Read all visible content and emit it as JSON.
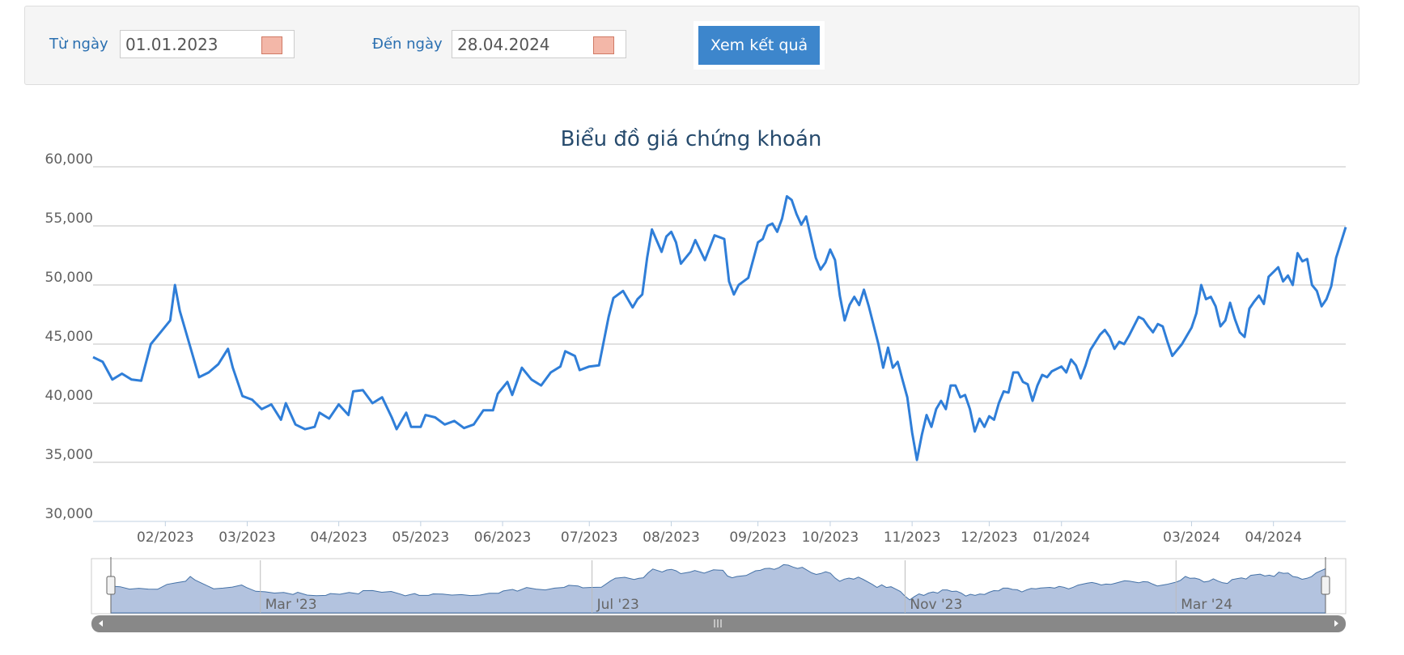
{
  "form": {
    "from_label": "Từ ngày",
    "from_value": "01.01.2023",
    "to_label": "Đến ngày",
    "to_value": "28.04.2024",
    "button": "Xem kết quả"
  },
  "chart_data": {
    "type": "line",
    "title": "Biểu đồ giá chứng khoán",
    "color": "#2f7ed8",
    "x": [
      0,
      2,
      4,
      6,
      8,
      10,
      12,
      14,
      16,
      17,
      18,
      20,
      22,
      24,
      26,
      28,
      29,
      31,
      33,
      35,
      37,
      39,
      40,
      42,
      44,
      46,
      47,
      49,
      51,
      53,
      54,
      56,
      58,
      60,
      62,
      63,
      65,
      66,
      68,
      69,
      71,
      73,
      75,
      77,
      79,
      81,
      83,
      84,
      86,
      87,
      89,
      91,
      93,
      95,
      97,
      98,
      100,
      101,
      103,
      105,
      107,
      108,
      110,
      112,
      113,
      114,
      115,
      116,
      118,
      119,
      120,
      121,
      122,
      124,
      125,
      127,
      129,
      131,
      132,
      133,
      134,
      136,
      138,
      139,
      140,
      141,
      142,
      143,
      144,
      145,
      146,
      147,
      148,
      150,
      151,
      152,
      153,
      154,
      155,
      156,
      157,
      158,
      159,
      160,
      161,
      163,
      164,
      165,
      166,
      167,
      168,
      169,
      170,
      171,
      172,
      173,
      174,
      175,
      176,
      177,
      178,
      179,
      180,
      181,
      182,
      183,
      184,
      185,
      186,
      187,
      188,
      189,
      190,
      191,
      192,
      193,
      194,
      195,
      196,
      197,
      198,
      199,
      201,
      202,
      203,
      204,
      205,
      206,
      207,
      209,
      210,
      211,
      212,
      213,
      214,
      215,
      217,
      218,
      219,
      220,
      221,
      222,
      223,
      224,
      226,
      228,
      229,
      230,
      231,
      232,
      233,
      234,
      235,
      236,
      237,
      238,
      239,
      240,
      241,
      242,
      243,
      244,
      245,
      246,
      247,
      248,
      249,
      250,
      251,
      252,
      253,
      254,
      255,
      256,
      257,
      258,
      260
    ],
    "values": [
      43900,
      43500,
      42000,
      42500,
      42000,
      41900,
      45000,
      46000,
      47000,
      50000,
      47800,
      45000,
      42200,
      42600,
      43300,
      44600,
      43000,
      40600,
      40300,
      39500,
      39900,
      38600,
      40000,
      38200,
      37800,
      38000,
      39200,
      38700,
      39900,
      39000,
      41000,
      41100,
      40000,
      40500,
      38800,
      37800,
      39200,
      38000,
      38000,
      39000,
      38800,
      38200,
      38500,
      37900,
      38200,
      39400,
      39400,
      40800,
      41800,
      40700,
      43000,
      42000,
      41500,
      42600,
      43100,
      44400,
      44000,
      42800,
      43100,
      43200,
      47300,
      48900,
      49500,
      48100,
      48800,
      49200,
      52300,
      54700,
      52800,
      54100,
      54500,
      53600,
      51800,
      52800,
      53800,
      52100,
      54200,
      53900,
      50300,
      49200,
      50000,
      50600,
      53600,
      53900,
      55000,
      55200,
      54500,
      55600,
      57500,
      57200,
      56000,
      55100,
      55800,
      52300,
      51300,
      51900,
      53000,
      52100,
      49100,
      47000,
      48300,
      49000,
      48300,
      49600,
      48200,
      45000,
      43000,
      44700,
      43000,
      43500,
      42000,
      40500,
      37500,
      35200,
      37300,
      39000,
      38000,
      39500,
      40200,
      39500,
      41500,
      41500,
      40500,
      40700,
      39500,
      37600,
      38700,
      38000,
      38900,
      38600,
      40000,
      41000,
      40900,
      42600,
      42600,
      41800,
      41600,
      40200,
      41500,
      42400,
      42200,
      42700,
      43100,
      42600,
      43700,
      43200,
      42100,
      43200,
      44500,
      45800,
      46200,
      45600,
      44600,
      45200,
      45000,
      45700,
      47300,
      47100,
      46500,
      46000,
      46700,
      46500,
      45200,
      44000,
      45000,
      46400,
      47600,
      50000,
      48800,
      49000,
      48200,
      46500,
      47000,
      48500,
      47100,
      46000,
      45600,
      48000,
      48600,
      49100,
      48400,
      50700,
      51100,
      51500,
      50300,
      50800,
      50000,
      52700,
      52000,
      52200,
      50000,
      49500,
      48200,
      48800,
      49900,
      52300,
      54900
    ],
    "xlim": [
      0,
      260
    ],
    "xticks": [
      {
        "value": 15,
        "label": "02/2023"
      },
      {
        "value": 32,
        "label": "03/2023"
      },
      {
        "value": 51,
        "label": "04/2023"
      },
      {
        "value": 68,
        "label": "05/2023"
      },
      {
        "value": 85,
        "label": "06/2023"
      },
      {
        "value": 103,
        "label": "07/2023"
      },
      {
        "value": 120,
        "label": "08/2023"
      },
      {
        "value": 138,
        "label": "09/2023"
      },
      {
        "value": 153,
        "label": "10/2023"
      },
      {
        "value": 170,
        "label": "11/2023"
      },
      {
        "value": 186,
        "label": "12/2023"
      },
      {
        "value": 201,
        "label": "01/2024"
      },
      {
        "value": 228,
        "label": "03/2024"
      },
      {
        "value": 245,
        "label": "04/2024"
      }
    ],
    "ylim": [
      30000,
      60000
    ],
    "yticks": [
      {
        "value": 30000,
        "label": "30,000"
      },
      {
        "value": 35000,
        "label": "35,000"
      },
      {
        "value": 40000,
        "label": "40,000"
      },
      {
        "value": 45000,
        "label": "45,000"
      },
      {
        "value": 50000,
        "label": "50,000"
      },
      {
        "value": 55000,
        "label": "55,000"
      },
      {
        "value": 60000,
        "label": "60,000"
      }
    ],
    "grid": true,
    "navigator": {
      "xticks": [
        {
          "value": 32,
          "label": "Mar '23"
        },
        {
          "value": 103,
          "label": "Jul '23"
        },
        {
          "value": 170,
          "label": "Nov '23"
        },
        {
          "value": 228,
          "label": "Mar '24"
        }
      ]
    }
  }
}
